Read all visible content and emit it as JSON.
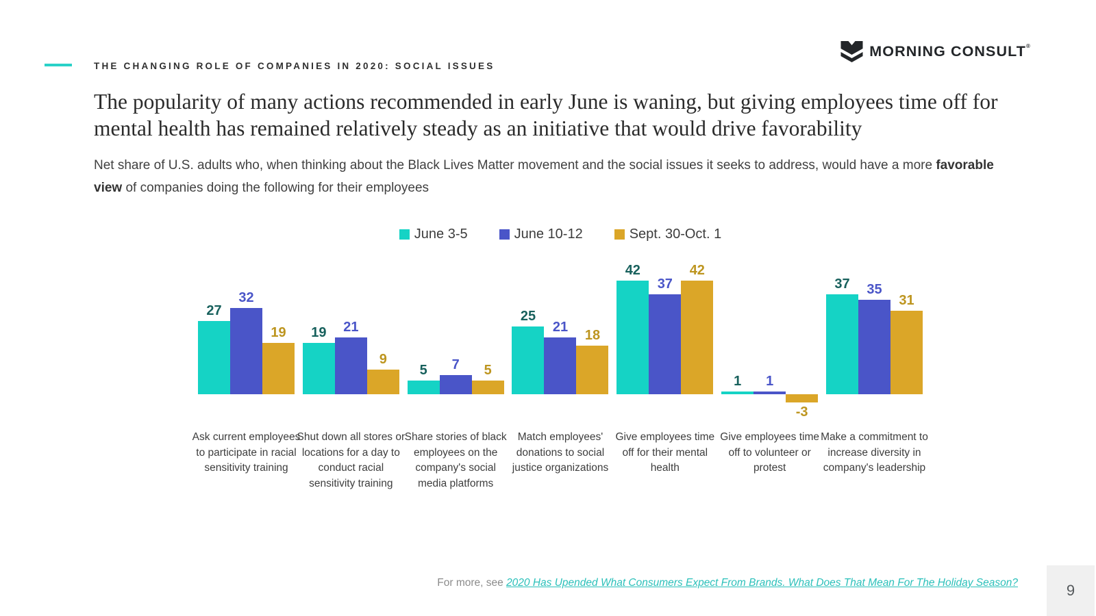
{
  "header": {
    "eyebrow": "THE CHANGING ROLE OF COMPANIES IN 2020: SOCIAL ISSUES",
    "logo_text": "MORNING CONSULT",
    "logo_trademark": "®"
  },
  "title": "The popularity of many actions recommended in early June is waning, but giving employees time off for mental health has remained relatively steady as an initiative that would drive favorability",
  "subtitle": {
    "before_bold": "Net share of U.S. adults who, when thinking about the Black Lives Matter movement and the social issues it seeks to address, would have a more ",
    "bold": "favorable view",
    "after_bold": " of companies doing the following for their employees"
  },
  "chart_data": {
    "type": "bar",
    "title": "Net favorability of company actions for employees",
    "categories": [
      "Ask current employees to participate in racial sensitivity training",
      "Shut down all stores or locations for a day to conduct racial sensitivity training",
      "Share stories of black employees on the company's social media platforms",
      "Match employees' donations to social justice organizations",
      "Give employees time off for their mental health",
      "Give employees time off to volunteer or protest",
      "Make a commitment to increase diversity in company's leadership"
    ],
    "series": [
      {
        "name": "June 3-5",
        "color": "#15d3c5",
        "label_color": "#17605c",
        "values": [
          27,
          19,
          5,
          25,
          42,
          1,
          37
        ]
      },
      {
        "name": "June 10-12",
        "color": "#4a55c8",
        "label_color": "#4a55c8",
        "values": [
          32,
          21,
          7,
          21,
          37,
          1,
          35
        ]
      },
      {
        "name": "Sept. 30-Oct. 1",
        "color": "#dba628",
        "label_color": "#bd951f",
        "values": [
          19,
          9,
          5,
          18,
          42,
          -3,
          31
        ]
      }
    ],
    "legend_position": "top",
    "grid": false,
    "axis_line": false,
    "data_labels": true,
    "ylim": [
      -3,
      42
    ]
  },
  "footer": {
    "prefix": "For more, see ",
    "link": "2020 Has Upended What Consumers Expect From Brands. What Does That Mean For The Holiday Season?",
    "page_number": "9"
  },
  "colors": {
    "accent": "#2ad1c8",
    "link": "#2bc0ba",
    "page_box_bg": "#f0f0f0"
  }
}
